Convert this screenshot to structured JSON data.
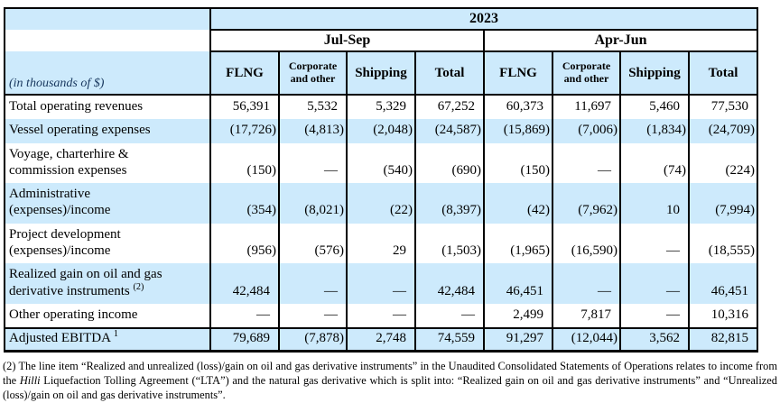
{
  "table": {
    "year_header": "2023",
    "period_headers": [
      "Jul-Sep",
      "Apr-Jun"
    ],
    "unit_label": "(in thousands of $)",
    "column_headers": [
      "FLNG",
      "Corporate and other",
      "Shipping",
      "Total",
      "FLNG",
      "Corporate and other",
      "Shipping",
      "Total"
    ],
    "rows": [
      {
        "label": "Total operating revenues",
        "sup": "",
        "values": [
          "56,391",
          "5,532",
          "5,329",
          "67,252",
          "60,373",
          "11,697",
          "5,460",
          "77,530"
        ]
      },
      {
        "label": "Vessel operating expenses",
        "sup": "",
        "values": [
          "(17,726)",
          "(4,813)",
          "(2,048)",
          "(24,587)",
          "(15,869)",
          "(7,006)",
          "(1,834)",
          "(24,709)"
        ]
      },
      {
        "label": "Voyage, charterhire & commission expenses",
        "sup": "",
        "values": [
          "(150)",
          "—",
          "(540)",
          "(690)",
          "(150)",
          "—",
          "(74)",
          "(224)"
        ]
      },
      {
        "label": "Administrative (expenses)/income",
        "sup": "",
        "values": [
          "(354)",
          "(8,021)",
          "(22)",
          "(8,397)",
          "(42)",
          "(7,962)",
          "10",
          "(7,994)"
        ]
      },
      {
        "label": "Project development (expenses)/income",
        "sup": "",
        "values": [
          "(956)",
          "(576)",
          "29",
          "(1,503)",
          "(1,965)",
          "(16,590)",
          "—",
          "(18,555)"
        ]
      },
      {
        "label": "Realized gain on oil and gas derivative instruments",
        "sup": "(2)",
        "values": [
          "42,484",
          "—",
          "—",
          "42,484",
          "46,451",
          "—",
          "—",
          "46,451"
        ]
      },
      {
        "label": "Other operating income",
        "sup": "",
        "values": [
          "—",
          "—",
          "—",
          "—",
          "2,499",
          "7,817",
          "—",
          "10,316"
        ]
      },
      {
        "label": "Adjusted EBITDA",
        "sup": "1",
        "values": [
          "79,689",
          "(7,878)",
          "2,748",
          "74,559",
          "91,297",
          "(12,044)",
          "3,562",
          "82,815"
        ]
      }
    ]
  },
  "footnote": {
    "part1": "(2) The line item “Realized and unrealized (loss)/gain on oil and gas derivative instruments” in the Unaudited Consolidated Statements of Operations relates to income from the ",
    "italic": "Hilli",
    "part2": " Liquefaction Tolling Agreement (“LTA”) and the natural gas derivative which is split into: “Realized gain on oil and gas derivative instruments” and “Unrealized (loss)/gain on oil and gas derivative instruments”."
  },
  "colors": {
    "header_fill": "#cdeafc",
    "unit_label_text": "#17365d",
    "border": "#000000"
  }
}
